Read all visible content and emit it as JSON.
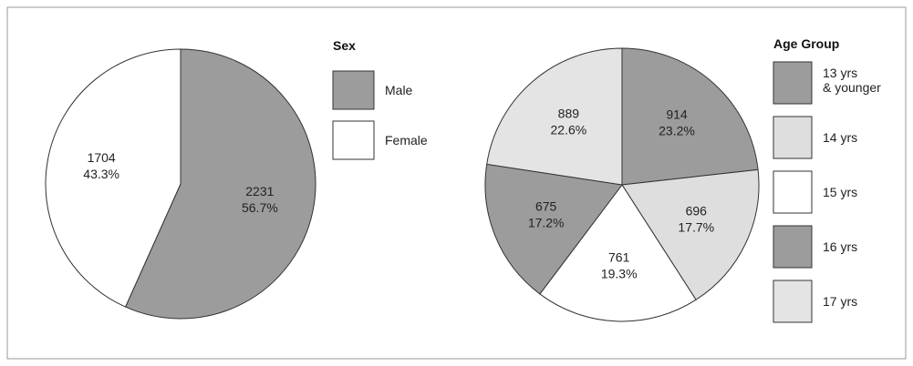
{
  "chart_data": [
    {
      "type": "pie",
      "legend_title": "Sex",
      "categories": [
        "Male",
        "Female"
      ],
      "values": [
        2231,
        1704
      ],
      "percent_labels": [
        "56.7%",
        "43.3%"
      ],
      "colors": [
        "#9c9c9c",
        "#ffffff"
      ]
    },
    {
      "type": "pie",
      "legend_title": "Age Group",
      "categories": [
        "13 yrs\n& younger",
        "14 yrs",
        "15 yrs",
        "16 yrs",
        "17 yrs"
      ],
      "values": [
        914,
        696,
        761,
        675,
        889
      ],
      "percent_labels": [
        "23.2%",
        "17.7%",
        "19.3%",
        "17.2%",
        "22.6%"
      ],
      "colors": [
        "#9c9c9c",
        "#dedede",
        "#ffffff",
        "#9c9c9c",
        "#e4e4e4"
      ]
    }
  ]
}
